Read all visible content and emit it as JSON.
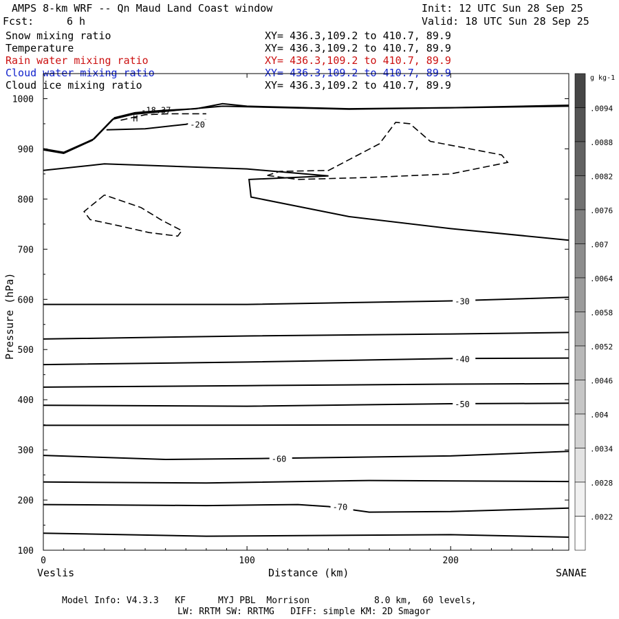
{
  "header": {
    "title": "AMPS 8-km WRF -- Qn Maud Land Coast window",
    "init": "Init: 12 UTC Sun 28 Sep 25",
    "fcst_label": "Fcst:",
    "fcst_value": "6 h",
    "valid": "Valid: 18 UTC Sun 28 Sep 25"
  },
  "fields": [
    {
      "name": "Snow mixing ratio",
      "xy": "XY= 436.3,109.2 to 410.7, 89.9",
      "color": "#000000"
    },
    {
      "name": "Temperature",
      "xy": "XY= 436.3,109.2 to 410.7, 89.9",
      "color": "#000000"
    },
    {
      "name": "Rain water mixing ratio",
      "xy": "XY= 436.3,109.2 to 410.7, 89.9",
      "color": "#cc1111"
    },
    {
      "name": "Cloud water mixing ratio",
      "xy": "XY= 436.3,109.2 to 410.7, 89.9",
      "color": "#1122cc"
    },
    {
      "name": "Cloud ice mixing ratio",
      "xy": "XY= 436.3,109.2 to 410.7, 89.9",
      "color": "#000000"
    }
  ],
  "chart_data": {
    "type": "contour",
    "xlabel": "Distance (km)",
    "ylabel": "Pressure (hPa)",
    "xlim": [
      0,
      258
    ],
    "ylim": [
      1050,
      100
    ],
    "x_ticks": [
      0,
      100,
      200
    ],
    "y_ticks": [
      100,
      200,
      300,
      400,
      500,
      600,
      700,
      800,
      900,
      1000
    ],
    "left_endpoint": "Veslis",
    "right_endpoint": "SANAE",
    "temperature_contours": [
      {
        "label": "",
        "points": [
          [
            0,
            134
          ],
          [
            80,
            128
          ],
          [
            200,
            131
          ],
          [
            258,
            126
          ]
        ]
      },
      {
        "label": "-70",
        "points": [
          [
            0,
            191
          ],
          [
            80,
            189
          ],
          [
            125,
            191
          ],
          [
            140,
            187
          ],
          [
            160,
            176
          ],
          [
            200,
            177
          ],
          [
            258,
            184
          ]
        ]
      },
      {
        "label": "",
        "points": [
          [
            0,
            236
          ],
          [
            80,
            234
          ],
          [
            160,
            239
          ],
          [
            200,
            238
          ],
          [
            258,
            237
          ]
        ]
      },
      {
        "label": "-60",
        "points": [
          [
            0,
            289
          ],
          [
            60,
            281
          ],
          [
            110,
            283
          ],
          [
            200,
            288
          ],
          [
            258,
            297
          ]
        ]
      },
      {
        "label": "",
        "points": [
          [
            0,
            349
          ],
          [
            258,
            350
          ]
        ]
      },
      {
        "label": "-50",
        "points": [
          [
            0,
            389
          ],
          [
            100,
            387
          ],
          [
            200,
            392
          ],
          [
            258,
            393
          ]
        ]
      },
      {
        "label": "",
        "points": [
          [
            0,
            425
          ],
          [
            100,
            428
          ],
          [
            200,
            431
          ],
          [
            258,
            432
          ]
        ]
      },
      {
        "label": "-40",
        "points": [
          [
            0,
            470
          ],
          [
            100,
            475
          ],
          [
            200,
            482
          ],
          [
            258,
            483
          ]
        ]
      },
      {
        "label": "",
        "points": [
          [
            0,
            521
          ],
          [
            100,
            527
          ],
          [
            200,
            531
          ],
          [
            258,
            534
          ]
        ]
      },
      {
        "label": "-30",
        "points": [
          [
            0,
            590
          ],
          [
            100,
            590
          ],
          [
            200,
            597
          ],
          [
            258,
            604
          ]
        ]
      },
      {
        "label": "",
        "points": [
          [
            0,
            857
          ],
          [
            30,
            870
          ],
          [
            100,
            860
          ],
          [
            140,
            846
          ],
          [
            101,
            839
          ],
          [
            102,
            804
          ],
          [
            150,
            765
          ],
          [
            200,
            741
          ],
          [
            258,
            718
          ]
        ]
      },
      {
        "label": "-20",
        "points": [
          [
            31,
            938
          ],
          [
            50,
            940
          ],
          [
            70,
            949
          ],
          [
            80,
            958
          ]
        ]
      },
      {
        "label": "",
        "points": [
          [
            0,
            900
          ],
          [
            10,
            893
          ],
          [
            25,
            920
          ],
          [
            35,
            962
          ],
          [
            45,
            972
          ],
          [
            60,
            977
          ],
          [
            75,
            980
          ],
          [
            88,
            990
          ],
          [
            100,
            985
          ],
          [
            150,
            980
          ],
          [
            200,
            982
          ],
          [
            258,
            987
          ]
        ]
      },
      {
        "label": "",
        "points": [
          [
            0,
            898
          ],
          [
            10,
            891
          ],
          [
            24,
            917
          ],
          [
            34,
            959
          ],
          [
            44,
            969
          ],
          [
            60,
            975
          ],
          [
            88,
            985
          ],
          [
            150,
            979
          ],
          [
            258,
            985
          ]
        ]
      }
    ],
    "dashed_contours": [
      {
        "label": "",
        "points": [
          [
            30,
            808
          ],
          [
            20,
            775
          ],
          [
            23,
            759
          ],
          [
            38,
            746
          ],
          [
            52,
            733
          ],
          [
            66,
            726
          ],
          [
            68,
            737
          ],
          [
            58,
            758
          ],
          [
            48,
            783
          ],
          [
            30,
            808
          ]
        ]
      },
      {
        "label": "",
        "points": [
          [
            110,
            847
          ],
          [
            125,
            839
          ],
          [
            160,
            843
          ],
          [
            200,
            850
          ],
          [
            228,
            873
          ],
          [
            225,
            888
          ],
          [
            190,
            915
          ],
          [
            180,
            950
          ],
          [
            173,
            953
          ],
          [
            165,
            910
          ],
          [
            140,
            857
          ],
          [
            116,
            855
          ],
          [
            110,
            847
          ]
        ]
      },
      {
        "label": "",
        "points": [
          [
            38,
            957
          ],
          [
            50,
            968
          ],
          [
            62,
            970
          ],
          [
            80,
            970
          ]
        ]
      }
    ],
    "annotations": [
      {
        "text": "H",
        "x": 44,
        "y": 960
      },
      {
        "text": "-18.37",
        "x": 48,
        "y": 977
      }
    ],
    "colorbar": {
      "unit": "g kg-1",
      "labels": [
        ".0094",
        ".0088",
        ".0082",
        ".0076",
        ".007",
        ".0064",
        ".0058",
        ".0052",
        ".0046",
        ".004",
        ".0034",
        ".0028",
        ".0022"
      ]
    }
  },
  "footer": {
    "line1": "Model Info: V4.3.3   KF      MYJ PBL  Morrison            8.0 km,  60 levels,",
    "line2": "LW: RRTM SW: RRTMG   DIFF: simple KM: 2D Smagor"
  }
}
